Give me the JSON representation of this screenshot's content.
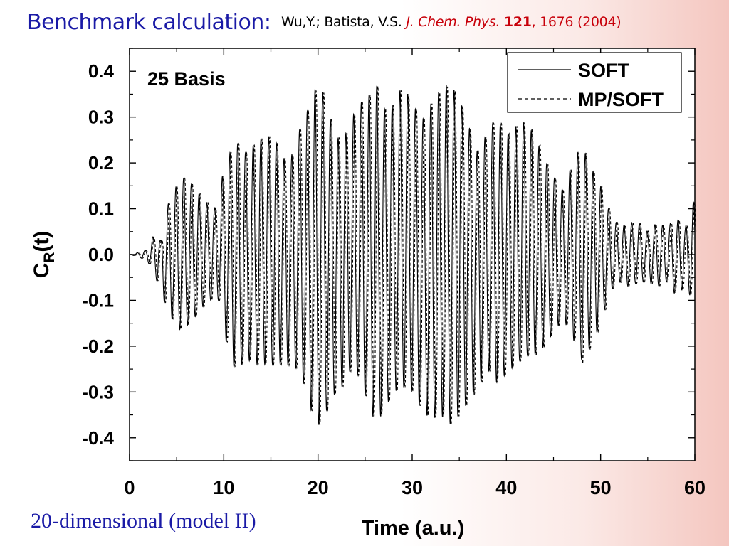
{
  "slide": {
    "title": "Benchmark calculation:",
    "citation": {
      "authors": "Wu,Y.; Batista, V.S.",
      "journal": "J. Chem. Phys.",
      "volume": "121",
      "pages": ", 1676 (2004)"
    },
    "caption": "20-dimensional (model II)"
  },
  "colors": {
    "title_blue": "#1a1aa6",
    "citation_red": "#c8000a",
    "line": "#000000",
    "background_edge": "#f4c6bf"
  },
  "chart_data": {
    "type": "line",
    "panel_label": "25 Basis",
    "xlabel": "Time (a.u.)",
    "ylabel_main": "C",
    "ylabel_sub": "R",
    "ylabel_tail": "(t)",
    "xlim": [
      0,
      60
    ],
    "ylim": [
      -0.45,
      0.45
    ],
    "x_ticks": [
      "0",
      "10",
      "20",
      "30",
      "40",
      "50",
      "60"
    ],
    "y_ticks": [
      "0.4",
      "0.3",
      "0.2",
      "0.1",
      "0.0",
      "-0.1",
      "-0.2",
      "-0.3",
      "-0.4"
    ],
    "legend_position": "top-right",
    "grid": false,
    "oscillation_period": 0.82,
    "series": [
      {
        "name": "SOFT",
        "line_style": "solid",
        "envelope_upper": {
          "t": [
            0,
            1,
            1.8,
            2.5,
            2.8,
            3.3,
            4.2,
            5.5,
            6.8,
            7.8,
            9,
            10.2,
            11.2,
            12.2,
            13.2,
            14.5,
            15.8,
            16.8,
            18,
            19.2,
            20,
            20.8,
            21.5,
            22.5,
            23.6,
            24.5,
            25.5,
            26.2,
            27.2,
            28,
            29,
            29.8,
            31,
            32,
            33,
            34,
            35,
            36,
            37,
            38,
            39,
            40,
            41,
            42,
            43,
            44,
            45,
            46,
            47,
            48,
            49,
            50,
            51,
            52,
            53,
            54,
            55,
            56,
            57,
            58,
            59,
            59.8,
            60
          ],
          "y": [
            0,
            0.005,
            0.01,
            0.04,
            0.05,
            0.03,
            0.12,
            0.17,
            0.15,
            0.12,
            0.1,
            0.2,
            0.25,
            0.22,
            0.24,
            0.26,
            0.24,
            0.19,
            0.27,
            0.33,
            0.38,
            0.34,
            0.28,
            0.24,
            0.3,
            0.33,
            0.35,
            0.37,
            0.31,
            0.33,
            0.37,
            0.34,
            0.29,
            0.33,
            0.36,
            0.375,
            0.34,
            0.28,
            0.22,
            0.27,
            0.3,
            0.26,
            0.28,
            0.29,
            0.26,
            0.21,
            0.17,
            0.14,
            0.2,
            0.24,
            0.19,
            0.15,
            0.09,
            0.06,
            0.07,
            0.07,
            0.05,
            0.07,
            0.06,
            0.08,
            0.06,
            0.12,
            0.1
          ]
        },
        "envelope_lower": {
          "t": [
            0,
            1,
            1.8,
            2.5,
            3.2,
            4.2,
            5.2,
            6.5,
            7.5,
            8.5,
            9.5,
            10.5,
            11.2,
            12.5,
            13.5,
            15,
            16.5,
            18,
            19,
            19.8,
            20.5,
            21.5,
            22.5,
            23.5,
            24.5,
            25.3,
            26.2,
            27,
            28,
            29,
            30,
            31,
            32,
            33,
            34,
            35,
            36,
            37,
            38,
            39,
            40,
            41,
            42,
            43,
            44,
            45,
            46,
            47,
            48,
            49,
            50,
            51,
            52,
            53,
            54,
            55,
            56,
            57,
            58,
            59,
            60
          ],
          "y": [
            0,
            -0.005,
            -0.015,
            -0.03,
            -0.08,
            -0.13,
            -0.165,
            -0.15,
            -0.12,
            -0.1,
            -0.1,
            -0.22,
            -0.25,
            -0.23,
            -0.24,
            -0.24,
            -0.24,
            -0.25,
            -0.32,
            -0.38,
            -0.36,
            -0.31,
            -0.29,
            -0.25,
            -0.27,
            -0.33,
            -0.37,
            -0.34,
            -0.3,
            -0.29,
            -0.3,
            -0.34,
            -0.36,
            -0.35,
            -0.37,
            -0.35,
            -0.32,
            -0.29,
            -0.25,
            -0.28,
            -0.26,
            -0.24,
            -0.22,
            -0.22,
            -0.2,
            -0.17,
            -0.14,
            -0.18,
            -0.23,
            -0.2,
            -0.15,
            -0.08,
            -0.06,
            -0.07,
            -0.06,
            -0.06,
            -0.07,
            -0.06,
            -0.09,
            -0.07,
            -0.11
          ]
        }
      },
      {
        "name": "MP/SOFT",
        "line_style": "dashed",
        "envelope_upper": {
          "t": [
            0,
            1,
            1.8,
            2.5,
            2.8,
            3.3,
            4.2,
            5.5,
            6.8,
            7.8,
            9,
            10.2,
            11.2,
            12.2,
            13.2,
            14.5,
            15.8,
            16.8,
            18,
            19.2,
            20,
            20.8,
            21.5,
            22.5,
            23.6,
            24.5,
            25.5,
            26.2,
            27.2,
            28,
            29,
            29.8,
            31,
            32,
            33,
            34,
            35,
            36,
            37,
            38,
            39,
            40,
            41,
            42,
            43,
            44,
            45,
            46,
            47,
            48,
            49,
            50,
            51,
            52,
            53,
            54,
            55,
            56,
            57,
            58,
            59,
            59.8,
            60
          ],
          "y": [
            0,
            0.005,
            0.01,
            0.04,
            0.05,
            0.03,
            0.12,
            0.17,
            0.15,
            0.12,
            0.1,
            0.2,
            0.25,
            0.22,
            0.24,
            0.26,
            0.24,
            0.19,
            0.27,
            0.33,
            0.375,
            0.34,
            0.28,
            0.24,
            0.3,
            0.33,
            0.35,
            0.37,
            0.31,
            0.33,
            0.37,
            0.34,
            0.29,
            0.33,
            0.36,
            0.37,
            0.34,
            0.28,
            0.22,
            0.27,
            0.3,
            0.26,
            0.28,
            0.29,
            0.265,
            0.21,
            0.17,
            0.14,
            0.2,
            0.24,
            0.19,
            0.15,
            0.09,
            0.06,
            0.07,
            0.07,
            0.05,
            0.07,
            0.06,
            0.08,
            0.06,
            0.12,
            0.1
          ]
        },
        "envelope_lower": {
          "t": [
            0,
            1,
            1.8,
            2.5,
            3.2,
            4.2,
            5.2,
            6.5,
            7.5,
            8.5,
            9.5,
            10.5,
            11.2,
            12.5,
            13.5,
            15,
            16.5,
            18,
            19,
            19.8,
            20.5,
            21.5,
            22.5,
            23.5,
            24.5,
            25.3,
            26.2,
            27,
            28,
            29,
            30,
            31,
            32,
            33,
            34,
            35,
            36,
            37,
            38,
            39,
            40,
            41,
            42,
            43,
            44,
            45,
            46,
            47,
            48,
            49,
            50,
            51,
            52,
            53,
            54,
            55,
            56,
            57,
            58,
            59,
            60
          ],
          "y": [
            0,
            -0.005,
            -0.015,
            -0.03,
            -0.08,
            -0.13,
            -0.165,
            -0.15,
            -0.12,
            -0.1,
            -0.1,
            -0.22,
            -0.25,
            -0.23,
            -0.24,
            -0.24,
            -0.24,
            -0.25,
            -0.32,
            -0.38,
            -0.36,
            -0.31,
            -0.29,
            -0.25,
            -0.27,
            -0.33,
            -0.37,
            -0.34,
            -0.3,
            -0.29,
            -0.3,
            -0.34,
            -0.36,
            -0.35,
            -0.37,
            -0.35,
            -0.32,
            -0.29,
            -0.25,
            -0.28,
            -0.26,
            -0.24,
            -0.22,
            -0.22,
            -0.2,
            -0.17,
            -0.14,
            -0.18,
            -0.24,
            -0.2,
            -0.15,
            -0.08,
            -0.06,
            -0.07,
            -0.06,
            -0.06,
            -0.07,
            -0.06,
            -0.09,
            -0.07,
            -0.11
          ]
        }
      }
    ]
  }
}
